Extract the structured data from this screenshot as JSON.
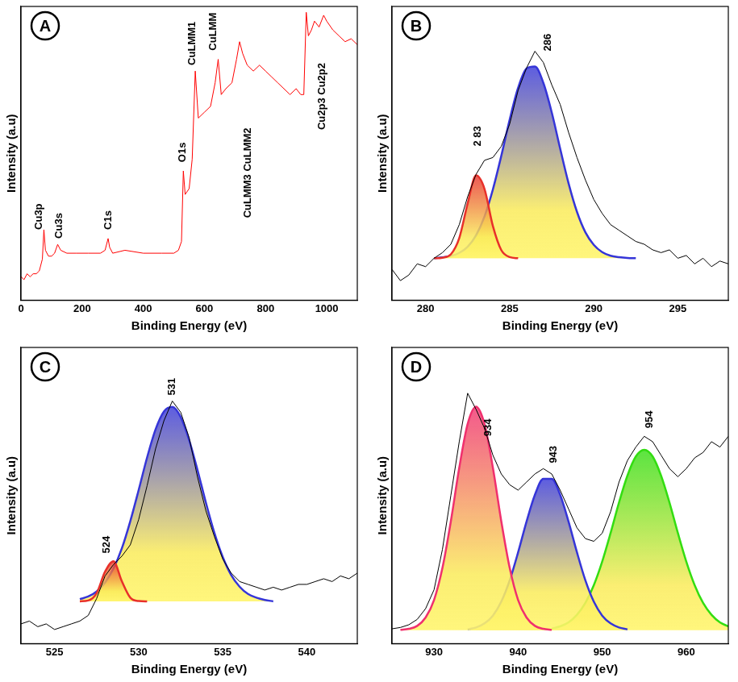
{
  "chart_data": [
    {
      "type": "line",
      "title": "A",
      "x_label": "Binding Energy (eV)",
      "y_label": "Intensity (a.u)",
      "xlim": [
        0,
        1100
      ],
      "xticks": [
        0,
        200,
        400,
        600,
        800,
        1000
      ],
      "ylim": [
        0,
        100
      ],
      "tick_labels": "x",
      "grid": false,
      "series": [
        {
          "type": "line",
          "color": "#ff0000",
          "x": [
            0,
            10,
            20,
            30,
            40,
            50,
            60,
            70,
            75,
            80,
            90,
            100,
            110,
            120,
            130,
            150,
            180,
            220,
            260,
            275,
            285,
            290,
            300,
            340,
            400,
            460,
            500,
            515,
            525,
            531,
            537,
            550,
            560,
            570,
            580,
            600,
            620,
            635,
            645,
            655,
            670,
            690,
            705,
            715,
            725,
            740,
            760,
            780,
            800,
            820,
            840,
            860,
            880,
            900,
            915,
            925,
            933,
            940,
            950,
            960,
            975,
            990,
            1000,
            1020,
            1040,
            1060,
            1080,
            1100
          ],
          "values": [
            8,
            7,
            9,
            8,
            9,
            9,
            10,
            14,
            24,
            17,
            15,
            15,
            16,
            19,
            17,
            16,
            16,
            16,
            16,
            17,
            21,
            18,
            16,
            17,
            16,
            16,
            16,
            17,
            20,
            44,
            36,
            38,
            48,
            78,
            62,
            64,
            66,
            74,
            82,
            70,
            72,
            74,
            82,
            88,
            84,
            80,
            78,
            80,
            78,
            76,
            74,
            72,
            70,
            72,
            70,
            70,
            98,
            90,
            92,
            95,
            93,
            97,
            95,
            92,
            90,
            88,
            89,
            87
          ]
        }
      ],
      "annotations": [
        {
          "text": "Cu3p",
          "x": 60,
          "y": 24
        },
        {
          "text": "Cu3s",
          "x": 125,
          "y": 21
        },
        {
          "text": "C1s",
          "x": 285,
          "y": 24
        },
        {
          "text": "O1s",
          "x": 528,
          "y": 47
        },
        {
          "text": "CuLMM1",
          "x": 560,
          "y": 80
        },
        {
          "text": "CuLMM",
          "x": 630,
          "y": 85
        },
        {
          "text": "CuLMM3 CuLMM2",
          "x": 742,
          "y": 28
        },
        {
          "text": "Cu2p3 Cu2p2",
          "x": 985,
          "y": 58
        }
      ]
    },
    {
      "type": "line",
      "title": "B",
      "x_label": "Binding Energy (eV)",
      "y_label": "Intensity (a.u)",
      "xlim": [
        278,
        298
      ],
      "xticks": [
        280,
        285,
        290,
        295
      ],
      "ylim": [
        -15,
        90
      ],
      "tick_labels": "x",
      "grid": false,
      "series": [
        {
          "type": "line",
          "color": "#000000",
          "x": [
            278,
            278.5,
            279,
            279.5,
            280,
            280.5,
            281,
            281.5,
            282,
            282.5,
            283,
            283.5,
            284,
            284.5,
            285,
            285.5,
            286,
            286.5,
            287,
            287.5,
            288,
            288.5,
            289,
            289.5,
            290,
            290.5,
            291,
            291.5,
            292,
            292.5,
            293,
            293.5,
            294,
            294.5,
            295,
            295.5,
            296,
            296.5,
            297,
            297.5,
            298
          ],
          "values": [
            -4,
            -8,
            -6,
            -2,
            -3,
            0,
            2,
            5,
            12,
            22,
            30,
            35,
            36,
            40,
            48,
            60,
            68,
            74,
            70,
            62,
            55,
            45,
            36,
            28,
            21,
            16,
            12,
            10,
            8,
            6,
            5,
            3,
            2,
            3,
            0,
            1,
            -2,
            0,
            -3,
            -1,
            -2
          ]
        },
        {
          "type": "area",
          "color": "#e8302a",
          "x": [
            280.5,
            281,
            281.5,
            282,
            282.5,
            283,
            283.5,
            284,
            284.5,
            285,
            285.5
          ],
          "values": [
            0,
            0.2,
            1.4,
            7.2,
            19.6,
            29.6,
            24.8,
            11.5,
            2.9,
            0.4,
            0
          ]
        },
        {
          "type": "area",
          "color": "#3535d8",
          "x": [
            280.5,
            281,
            281.5,
            282,
            282.5,
            283,
            283.5,
            284,
            284.5,
            285,
            285.5,
            286,
            286.5,
            287,
            287.5,
            288,
            288.5,
            289,
            289.5,
            290,
            290.5,
            291,
            291.5,
            292,
            292.5
          ],
          "values": [
            0,
            0.3,
            0.8,
            1.9,
            4.1,
            8.2,
            14.9,
            24.6,
            36.6,
            49.6,
            60.9,
            67.8,
            68.5,
            62.7,
            52.1,
            39.2,
            26.8,
            16.6,
            9.3,
            4.8,
            2.2,
            0.9,
            0.4,
            0.1,
            0
          ]
        }
      ],
      "annotations": [
        {
          "text": "2 83",
          "x": 283.1,
          "y": 40
        },
        {
          "text": "286",
          "x": 287.3,
          "y": 74
        }
      ]
    },
    {
      "type": "line",
      "title": "C",
      "x_label": "Binding Energy (eV)",
      "y_label": "Intensity (a.u)",
      "xlim": [
        523,
        543
      ],
      "xticks": [
        525,
        530,
        535,
        540
      ],
      "ylim": [
        -15,
        90
      ],
      "tick_labels": "x",
      "grid": false,
      "series": [
        {
          "type": "line",
          "color": "#000000",
          "x": [
            523,
            523.5,
            524,
            524.5,
            525,
            525.5,
            526,
            526.5,
            527,
            527.5,
            528,
            528.5,
            529,
            529.5,
            530,
            530.5,
            531,
            531.5,
            532,
            532.5,
            533,
            533.5,
            534,
            534.5,
            535,
            535.5,
            536,
            536.5,
            537,
            537.5,
            538,
            538.5,
            539,
            539.5,
            540,
            540.5,
            541,
            541.5,
            542,
            542.5,
            543
          ],
          "values": [
            -8,
            -7,
            -9,
            -8,
            -10,
            -9,
            -8,
            -7,
            -5,
            1,
            9,
            13,
            16,
            20,
            29,
            41,
            54,
            64,
            71,
            67,
            58,
            44,
            32,
            23,
            15,
            10,
            7,
            6,
            5,
            4,
            5,
            4,
            5,
            6,
            6,
            7,
            8,
            7,
            9,
            8,
            10
          ]
        },
        {
          "type": "area",
          "color": "#e8302a",
          "x": [
            526.5,
            527,
            527.5,
            528,
            528.5,
            529,
            529.5,
            530,
            530.5
          ],
          "values": [
            0,
            0.3,
            2.9,
            10.5,
            14.2,
            7.1,
            1.3,
            0.1,
            0
          ]
        },
        {
          "type": "area",
          "color": "#3535d8",
          "x": [
            526.5,
            527,
            527.5,
            528,
            528.5,
            529,
            529.5,
            530,
            530.5,
            531,
            531.5,
            532,
            532.5,
            533,
            533.5,
            534,
            534.5,
            535,
            535.5,
            536,
            536.5,
            537,
            537.5,
            538
          ],
          "values": [
            0.8,
            1.7,
            3.5,
            6.6,
            11.6,
            18.8,
            28.4,
            39.5,
            51.0,
            60.9,
            67.3,
            68.9,
            65.3,
            57.2,
            46.5,
            34.9,
            24.3,
            15.7,
            9.3,
            5.2,
            2.6,
            1.3,
            0.5,
            0
          ]
        }
      ],
      "annotations": [
        {
          "text": "524",
          "x": 528.1,
          "y": 17
        },
        {
          "text": "531",
          "x": 532,
          "y": 73
        }
      ]
    },
    {
      "type": "line",
      "title": "D",
      "x_label": "Binding Energy (eV)",
      "y_label": "Intensity (a.u)",
      "xlim": [
        925,
        965
      ],
      "xticks": [
        930,
        940,
        950,
        960
      ],
      "ylim": [
        -5,
        105
      ],
      "tick_labels": "x",
      "grid": false,
      "series": [
        {
          "type": "line",
          "color": "#000000",
          "x": [
            925,
            926,
            927,
            928,
            929,
            930,
            931,
            932,
            933,
            934,
            935,
            936,
            937,
            938,
            939,
            940,
            941,
            942,
            943,
            944,
            945,
            946,
            947,
            948,
            949,
            950,
            951,
            952,
            953,
            954,
            955,
            956,
            957,
            958,
            959,
            960,
            961,
            962,
            963,
            964,
            965
          ],
          "values": [
            0.5,
            1,
            2,
            4,
            8,
            15,
            30,
            50,
            70,
            88,
            82,
            75,
            65,
            58,
            54,
            52,
            55,
            58,
            60,
            58,
            52,
            45,
            38,
            34,
            33,
            36,
            44,
            55,
            63,
            68,
            72,
            70,
            65,
            60,
            57,
            60,
            64,
            66,
            70,
            68,
            72
          ]
        },
        {
          "type": "area",
          "color": "#f0306e",
          "x": [
            926,
            927,
            928,
            929,
            930,
            931,
            932,
            933,
            934,
            935,
            936,
            937,
            938,
            939,
            940,
            941,
            942,
            943,
            944
          ],
          "values": [
            0.1,
            0.5,
            1.6,
            4.7,
            11.2,
            23.1,
            40.4,
            60.3,
            76.6,
            83,
            76.6,
            60.3,
            40.4,
            23.1,
            11.2,
            4.7,
            1.6,
            0.5,
            0.1
          ]
        },
        {
          "type": "area",
          "color": "#3535d8",
          "x": [
            934,
            935,
            936,
            937,
            938,
            939,
            940,
            941,
            942,
            943,
            944,
            945,
            946,
            947,
            948,
            949,
            950,
            951,
            952,
            953
          ],
          "values": [
            0.3,
            1.0,
            2.5,
            5.4,
            10.6,
            18.5,
            28.9,
            40.3,
            50.3,
            56.2,
            56.2,
            50.3,
            40.3,
            28.9,
            18.5,
            10.6,
            5.4,
            2.5,
            1.0,
            0.3
          ]
        },
        {
          "type": "area",
          "color": "#33dd11",
          "x": [
            944,
            945,
            946,
            947,
            948,
            949,
            950,
            951,
            952,
            953,
            954,
            955,
            956,
            957,
            958,
            959,
            960,
            961,
            962,
            963,
            964,
            965
          ],
          "values": [
            0.6,
            1.4,
            2.9,
            5.7,
            10.1,
            16.7,
            25.5,
            36.1,
            47.4,
            57.4,
            64.5,
            67,
            64.5,
            57.4,
            47.4,
            36.1,
            25.5,
            16.7,
            10.1,
            5.7,
            2.9,
            1.4
          ]
        }
      ],
      "annotations": [
        {
          "text": "934",
          "x": 936.5,
          "y": 72
        },
        {
          "text": "943",
          "x": 944.2,
          "y": 62
        },
        {
          "text": "954",
          "x": 955.6,
          "y": 75
        }
      ]
    }
  ]
}
